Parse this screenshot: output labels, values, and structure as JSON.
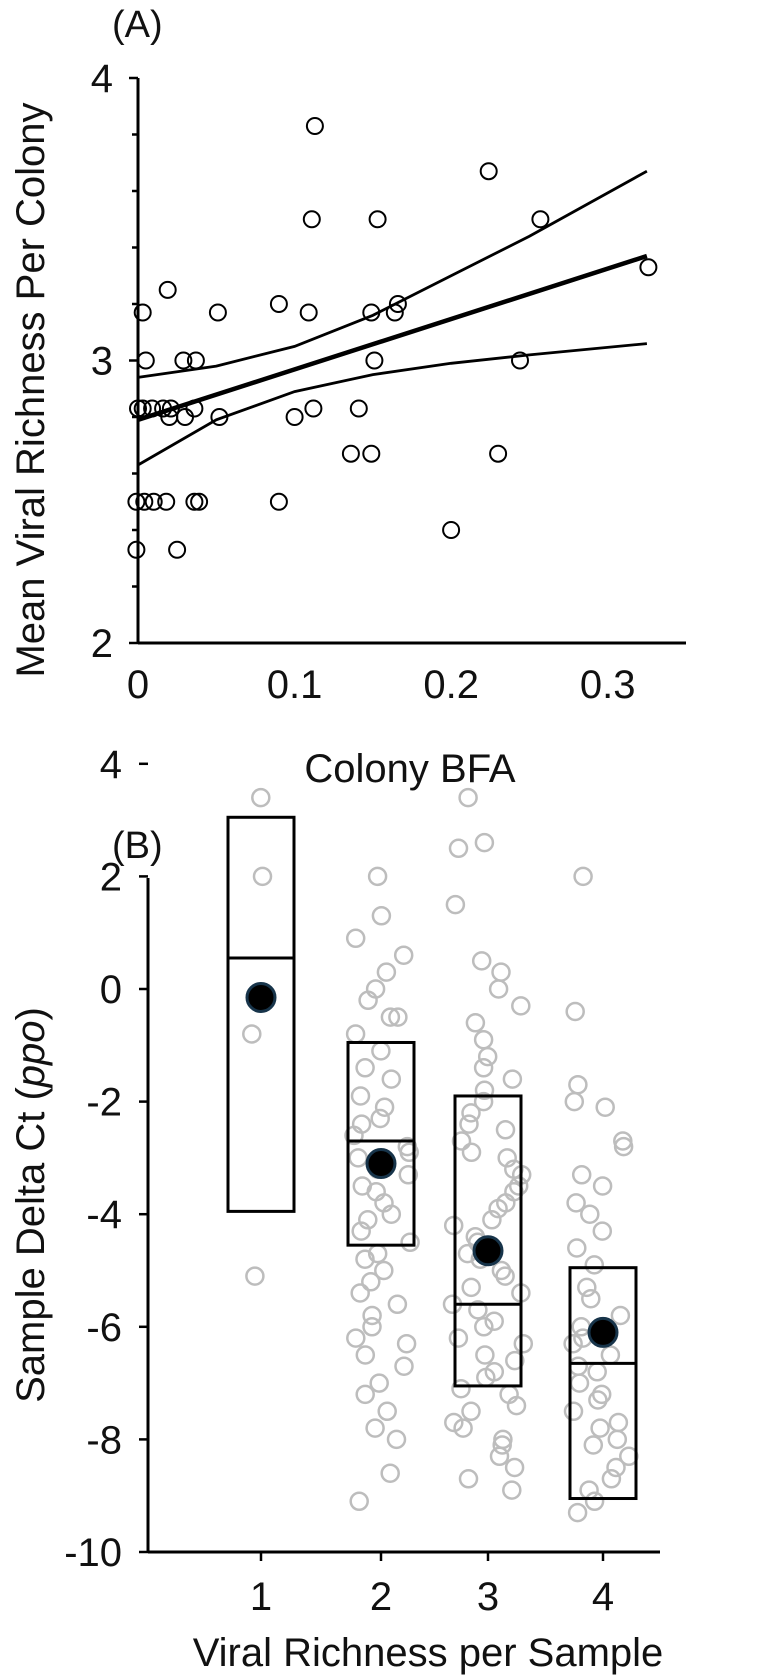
{
  "chart_data": [
    {
      "type": "scatter",
      "panel_label": "(A)",
      "xlabel": "Colony BFA",
      "ylabel": "Mean Viral Richness Per Colony",
      "xlim": [
        0,
        0.35
      ],
      "ylim": [
        2,
        4
      ],
      "x_ticks": [
        0,
        0.1,
        0.2,
        0.3
      ],
      "x_tick_labels": [
        "0",
        "0.1",
        "0.2",
        "0.3"
      ],
      "y_ticks": [
        2,
        3,
        4
      ],
      "y_tick_labels": [
        "2",
        "3",
        "4"
      ],
      "y_minor_step": 0.2,
      "points": [
        [
          0.113,
          3.83
        ],
        [
          0.224,
          3.67
        ],
        [
          0.111,
          3.5
        ],
        [
          0.153,
          3.5
        ],
        [
          0.257,
          3.5
        ],
        [
          0.326,
          3.33
        ],
        [
          0.019,
          3.25
        ],
        [
          0.09,
          3.2
        ],
        [
          0.166,
          3.2
        ],
        [
          0.003,
          3.17
        ],
        [
          0.051,
          3.17
        ],
        [
          0.109,
          3.17
        ],
        [
          0.149,
          3.17
        ],
        [
          0.164,
          3.17
        ],
        [
          0.005,
          3.0
        ],
        [
          0.029,
          3.0
        ],
        [
          0.037,
          3.0
        ],
        [
          0.151,
          3.0
        ],
        [
          0.244,
          3.0
        ],
        [
          0.0,
          2.83
        ],
        [
          0.003,
          2.83
        ],
        [
          0.009,
          2.83
        ],
        [
          0.016,
          2.83
        ],
        [
          0.021,
          2.83
        ],
        [
          0.036,
          2.83
        ],
        [
          0.112,
          2.83
        ],
        [
          0.141,
          2.83
        ],
        [
          0.02,
          2.8
        ],
        [
          0.03,
          2.8
        ],
        [
          0.052,
          2.8
        ],
        [
          0.1,
          2.8
        ],
        [
          0.136,
          2.67
        ],
        [
          0.149,
          2.67
        ],
        [
          0.23,
          2.67
        ],
        [
          -0.001,
          2.5
        ],
        [
          0.004,
          2.5
        ],
        [
          0.01,
          2.5
        ],
        [
          0.018,
          2.5
        ],
        [
          0.036,
          2.5
        ],
        [
          0.039,
          2.5
        ],
        [
          0.09,
          2.5
        ],
        [
          0.2,
          2.4
        ],
        [
          -0.001,
          2.33
        ],
        [
          0.025,
          2.33
        ]
      ],
      "fit_line": [
        [
          0,
          2.79
        ],
        [
          0.325,
          3.37
        ]
      ],
      "ci_upper": [
        [
          0,
          2.94
        ],
        [
          0.05,
          2.98
        ],
        [
          0.1,
          3.05
        ],
        [
          0.15,
          3.16
        ],
        [
          0.2,
          3.3
        ],
        [
          0.25,
          3.44
        ],
        [
          0.325,
          3.67
        ]
      ],
      "ci_lower": [
        [
          0,
          2.63
        ],
        [
          0.05,
          2.79
        ],
        [
          0.1,
          2.89
        ],
        [
          0.15,
          2.95
        ],
        [
          0.2,
          2.99
        ],
        [
          0.25,
          3.02
        ],
        [
          0.325,
          3.06
        ]
      ]
    },
    {
      "type": "box",
      "panel_label": "(B)",
      "xlabel": "Viral Richness per Sample",
      "ylabel_main": "Sample Delta Ct (",
      "ylabel_italic": "ppo",
      "ylabel_close": ")",
      "ylim": [
        -10,
        5
      ],
      "y_ticks": [
        -10,
        -8,
        -6,
        -4,
        -2,
        0,
        2,
        4
      ],
      "y_tick_labels": [
        "-10",
        "-8",
        "-6",
        "-4",
        "-2",
        "0",
        "2",
        "4"
      ],
      "categories": [
        "1",
        "2",
        "3",
        "4"
      ],
      "boxes": [
        {
          "category": "1",
          "q1": -3.95,
          "median": 0.55,
          "q3": 3.05,
          "mean": -0.15
        },
        {
          "category": "2",
          "q1": -4.55,
          "median": -2.7,
          "q3": -0.95,
          "mean": -3.1
        },
        {
          "category": "3",
          "q1": -7.05,
          "median": -5.6,
          "q3": -1.9,
          "mean": -4.65
        },
        {
          "category": "4",
          "q1": -9.05,
          "median": -6.65,
          "q3": -4.95,
          "mean": -6.1
        }
      ],
      "points": [
        [
          "1",
          3.4
        ],
        [
          "1",
          2.0
        ],
        [
          "1",
          -0.8
        ],
        [
          "1",
          -5.1
        ],
        [
          "2",
          2.0
        ],
        [
          "2",
          1.3
        ],
        [
          "2",
          0.9
        ],
        [
          "2",
          0.6
        ],
        [
          "2",
          0.3
        ],
        [
          "2",
          0.0
        ],
        [
          "2",
          -0.2
        ],
        [
          "2",
          -0.5
        ],
        [
          "2",
          -0.5
        ],
        [
          "2",
          -0.8
        ],
        [
          "2",
          -1.1
        ],
        [
          "2",
          -1.4
        ],
        [
          "2",
          -1.6
        ],
        [
          "2",
          -1.9
        ],
        [
          "2",
          -2.1
        ],
        [
          "2",
          -2.3
        ],
        [
          "2",
          -2.4
        ],
        [
          "2",
          -2.6
        ],
        [
          "2",
          -2.8
        ],
        [
          "2",
          -2.9
        ],
        [
          "2",
          -3.0
        ],
        [
          "2",
          -3.2
        ],
        [
          "2",
          -3.3
        ],
        [
          "2",
          -3.5
        ],
        [
          "2",
          -3.6
        ],
        [
          "2",
          -3.8
        ],
        [
          "2",
          -4.0
        ],
        [
          "2",
          -4.1
        ],
        [
          "2",
          -4.3
        ],
        [
          "2",
          -4.5
        ],
        [
          "2",
          -4.7
        ],
        [
          "2",
          -4.8
        ],
        [
          "2",
          -5.0
        ],
        [
          "2",
          -5.2
        ],
        [
          "2",
          -5.4
        ],
        [
          "2",
          -5.6
        ],
        [
          "2",
          -5.8
        ],
        [
          "2",
          -6.0
        ],
        [
          "2",
          -6.2
        ],
        [
          "2",
          -6.3
        ],
        [
          "2",
          -6.5
        ],
        [
          "2",
          -6.7
        ],
        [
          "2",
          -7.0
        ],
        [
          "2",
          -7.2
        ],
        [
          "2",
          -7.5
        ],
        [
          "2",
          -7.8
        ],
        [
          "2",
          -8.0
        ],
        [
          "2",
          -8.6
        ],
        [
          "2",
          -9.1
        ],
        [
          "3",
          3.4
        ],
        [
          "3",
          2.6
        ],
        [
          "3",
          2.5
        ],
        [
          "3",
          1.5
        ],
        [
          "3",
          0.5
        ],
        [
          "3",
          0.3
        ],
        [
          "3",
          0.0
        ],
        [
          "3",
          -0.3
        ],
        [
          "3",
          -0.6
        ],
        [
          "3",
          -0.9
        ],
        [
          "3",
          -1.2
        ],
        [
          "3",
          -1.4
        ],
        [
          "3",
          -1.6
        ],
        [
          "3",
          -1.8
        ],
        [
          "3",
          -2.0
        ],
        [
          "3",
          -2.2
        ],
        [
          "3",
          -2.4
        ],
        [
          "3",
          -2.5
        ],
        [
          "3",
          -2.7
        ],
        [
          "3",
          -2.9
        ],
        [
          "3",
          -3.0
        ],
        [
          "3",
          -3.2
        ],
        [
          "3",
          -3.3
        ],
        [
          "3",
          -3.5
        ],
        [
          "3",
          -3.6
        ],
        [
          "3",
          -3.8
        ],
        [
          "3",
          -3.9
        ],
        [
          "3",
          -4.1
        ],
        [
          "3",
          -4.2
        ],
        [
          "3",
          -4.4
        ],
        [
          "3",
          -4.5
        ],
        [
          "3",
          -4.7
        ],
        [
          "3",
          -4.8
        ],
        [
          "3",
          -5.0
        ],
        [
          "3",
          -5.1
        ],
        [
          "3",
          -5.3
        ],
        [
          "3",
          -5.4
        ],
        [
          "3",
          -5.6
        ],
        [
          "3",
          -5.7
        ],
        [
          "3",
          -5.9
        ],
        [
          "3",
          -6.0
        ],
        [
          "3",
          -6.2
        ],
        [
          "3",
          -6.3
        ],
        [
          "3",
          -6.5
        ],
        [
          "3",
          -6.6
        ],
        [
          "3",
          -6.8
        ],
        [
          "3",
          -6.9
        ],
        [
          "3",
          -7.1
        ],
        [
          "3",
          -7.2
        ],
        [
          "3",
          -7.4
        ],
        [
          "3",
          -7.5
        ],
        [
          "3",
          -7.7
        ],
        [
          "3",
          -7.8
        ],
        [
          "3",
          -8.0
        ],
        [
          "3",
          -8.1
        ],
        [
          "3",
          -8.3
        ],
        [
          "3",
          -8.5
        ],
        [
          "3",
          -8.7
        ],
        [
          "3",
          -8.9
        ],
        [
          "4",
          2.0
        ],
        [
          "4",
          -0.4
        ],
        [
          "4",
          -1.7
        ],
        [
          "4",
          -2.0
        ],
        [
          "4",
          -2.1
        ],
        [
          "4",
          -2.7
        ],
        [
          "4",
          -2.8
        ],
        [
          "4",
          -3.3
        ],
        [
          "4",
          -3.5
        ],
        [
          "4",
          -3.8
        ],
        [
          "4",
          -4.0
        ],
        [
          "4",
          -4.3
        ],
        [
          "4",
          -4.6
        ],
        [
          "4",
          -4.9
        ],
        [
          "4",
          -5.3
        ],
        [
          "4",
          -5.5
        ],
        [
          "4",
          -5.8
        ],
        [
          "4",
          -6.0
        ],
        [
          "4",
          -6.2
        ],
        [
          "4",
          -6.3
        ],
        [
          "4",
          -6.5
        ],
        [
          "4",
          -6.7
        ],
        [
          "4",
          -6.8
        ],
        [
          "4",
          -7.0
        ],
        [
          "4",
          -7.2
        ],
        [
          "4",
          -7.3
        ],
        [
          "4",
          -7.5
        ],
        [
          "4",
          -7.7
        ],
        [
          "4",
          -7.8
        ],
        [
          "4",
          -8.0
        ],
        [
          "4",
          -8.1
        ],
        [
          "4",
          -8.3
        ],
        [
          "4",
          -8.5
        ],
        [
          "4",
          -8.7
        ],
        [
          "4",
          -8.9
        ],
        [
          "4",
          -9.1
        ],
        [
          "4",
          -9.3
        ]
      ]
    }
  ]
}
